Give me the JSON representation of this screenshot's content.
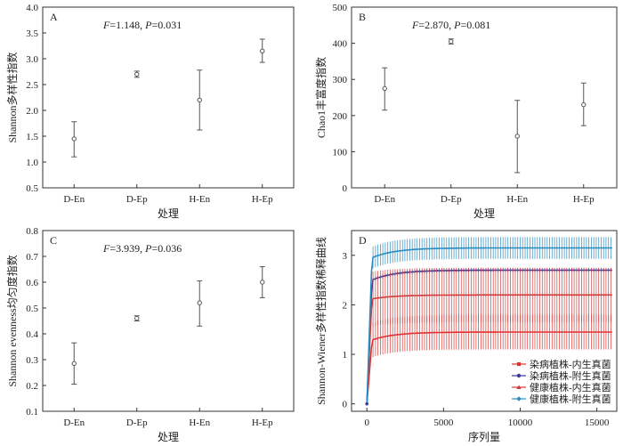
{
  "chart_data": [
    {
      "type": "scatter",
      "panel": "A",
      "stat_F": "1.148",
      "stat_P": "0.031",
      "categories": [
        "D-En",
        "D-Ep",
        "H-En",
        "H-Ep"
      ],
      "values": [
        1.45,
        2.7,
        2.2,
        3.15
      ],
      "err_low": [
        1.1,
        2.64,
        1.62,
        2.93
      ],
      "err_high": [
        1.78,
        2.76,
        2.78,
        3.38
      ],
      "xlabel": "处理",
      "ylabel": "Shannon多样性指数",
      "ylim": [
        0.5,
        4.0
      ],
      "yticks": [
        "0.5",
        "1.0",
        "1.5",
        "2.0",
        "2.5",
        "3.0",
        "3.5",
        "4.0"
      ],
      "color": "#555555"
    },
    {
      "type": "scatter",
      "panel": "B",
      "stat_F": "2.870",
      "stat_P": "0.081",
      "categories": [
        "D-En",
        "D-Ep",
        "H-En",
        "H-Ep"
      ],
      "values": [
        275,
        405,
        143,
        230
      ],
      "err_low": [
        215,
        398,
        42,
        172
      ],
      "err_high": [
        332,
        412,
        242,
        290
      ],
      "xlabel": "处理",
      "ylabel": "Chao1丰富度指数",
      "ylim": [
        0,
        500
      ],
      "yticks": [
        "0",
        "100",
        "200",
        "300",
        "400",
        "500"
      ],
      "color": "#555555"
    },
    {
      "type": "scatter",
      "panel": "C",
      "stat_F": "3.939",
      "stat_P": "0.036",
      "categories": [
        "D-En",
        "D-Ep",
        "H-En",
        "H-Ep"
      ],
      "values": [
        0.285,
        0.46,
        0.52,
        0.6
      ],
      "err_low": [
        0.205,
        0.45,
        0.43,
        0.54
      ],
      "err_high": [
        0.365,
        0.47,
        0.605,
        0.66
      ],
      "xlabel": "处理",
      "ylabel": "Shannon evenness均匀度指数",
      "ylim": [
        0.1,
        0.8
      ],
      "yticks": [
        "0.1",
        "0.2",
        "0.3",
        "0.4",
        "0.5",
        "0.6",
        "0.7",
        "0.8"
      ],
      "color": "#555555"
    },
    {
      "type": "line",
      "panel": "D",
      "xlabel": "序列量",
      "ylabel": "Shannon-Wiener多样性指数稀释曲线",
      "xlim": [
        -1000,
        16300
      ],
      "ylim": [
        -0.15,
        3.5
      ],
      "xticks": [
        "0",
        "5000",
        "10000",
        "15000"
      ],
      "yticks": [
        "0",
        "1",
        "2",
        "3"
      ],
      "legend_position": "bottom-right",
      "series": [
        {
          "name": "染病植株-内生真菌",
          "color": "#e03030",
          "marker": "square",
          "plateau": 1.45,
          "start": 1.25,
          "err": 0.35
        },
        {
          "name": "染病植株-附生真菌",
          "color": "#3a3a9a",
          "marker": "circle",
          "plateau": 2.7,
          "start": 2.45,
          "err": 0.04
        },
        {
          "name": "健康植株-内生真菌",
          "color": "#d03a3a",
          "marker": "triangle",
          "plateau": 2.2,
          "start": 2.1,
          "err": 0.55
        },
        {
          "name": "健康植株-附生真菌",
          "color": "#2a8bc0",
          "marker": "diamond",
          "plateau": 3.15,
          "start": 2.9,
          "err": 0.22
        }
      ]
    }
  ]
}
